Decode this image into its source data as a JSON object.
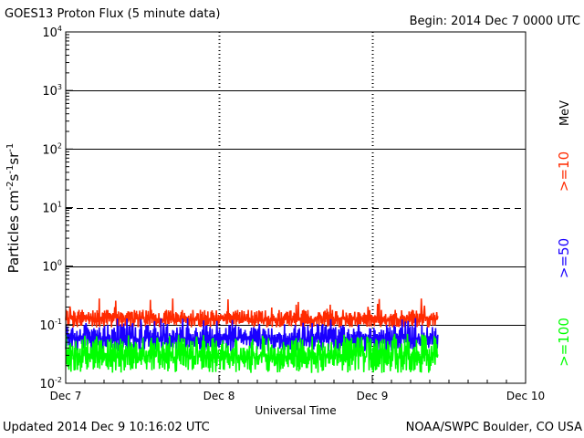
{
  "header": {
    "title": "GOES13 Proton Flux (5 minute data)",
    "begin": "Begin: 2014 Dec 7 0000 UTC"
  },
  "footer": {
    "updated": "Updated 2014 Dec  9 10:16:02 UTC",
    "source": "NOAA/SWPC Boulder, CO USA"
  },
  "colors": {
    "ge10": "#ff2a00",
    "ge50": "#1a00ff",
    "ge100": "#00ff00"
  },
  "chart_data": {
    "type": "line",
    "title": "GOES13 Proton Flux (5 minute data)",
    "xlabel": "Universal Time",
    "ylabel": "Particles cm^-2 s^-1 sr^-1",
    "yscale": "log",
    "ylim": [
      0.01,
      10000
    ],
    "y_tick_labels": [
      {
        "value": 0.01,
        "base": "10",
        "exp": "-2"
      },
      {
        "value": 0.1,
        "base": "10",
        "exp": "-1"
      },
      {
        "value": 1,
        "base": "10",
        "exp": "0"
      },
      {
        "value": 10,
        "base": "10",
        "exp": "1"
      },
      {
        "value": 100,
        "base": "10",
        "exp": "2"
      },
      {
        "value": 1000,
        "base": "10",
        "exp": "3"
      },
      {
        "value": 10000,
        "base": "10",
        "exp": "4"
      }
    ],
    "dashed_threshold": 10,
    "solid_gridlines": [
      0.1,
      1,
      100,
      1000
    ],
    "xlim": [
      "2014-12-07",
      "2014-12-10"
    ],
    "x_tick_labels": [
      "Dec 7",
      "Dec 8",
      "Dec 9",
      "Dec 10"
    ],
    "data_end": "2014-12-09 10:15",
    "units_label": "MeV",
    "grid": true,
    "legend_position": "right",
    "series": [
      {
        "name": ">=10",
        "color": "#ff2a00",
        "typical_range": [
          0.09,
          0.18
        ],
        "peak": 0.3
      },
      {
        "name": ">=50",
        "color": "#1a00ff",
        "typical_range": [
          0.035,
          0.1
        ],
        "peak": 0.13
      },
      {
        "name": ">=100",
        "color": "#00ff00",
        "typical_range": [
          0.015,
          0.06
        ],
        "peak": 0.07
      }
    ]
  }
}
